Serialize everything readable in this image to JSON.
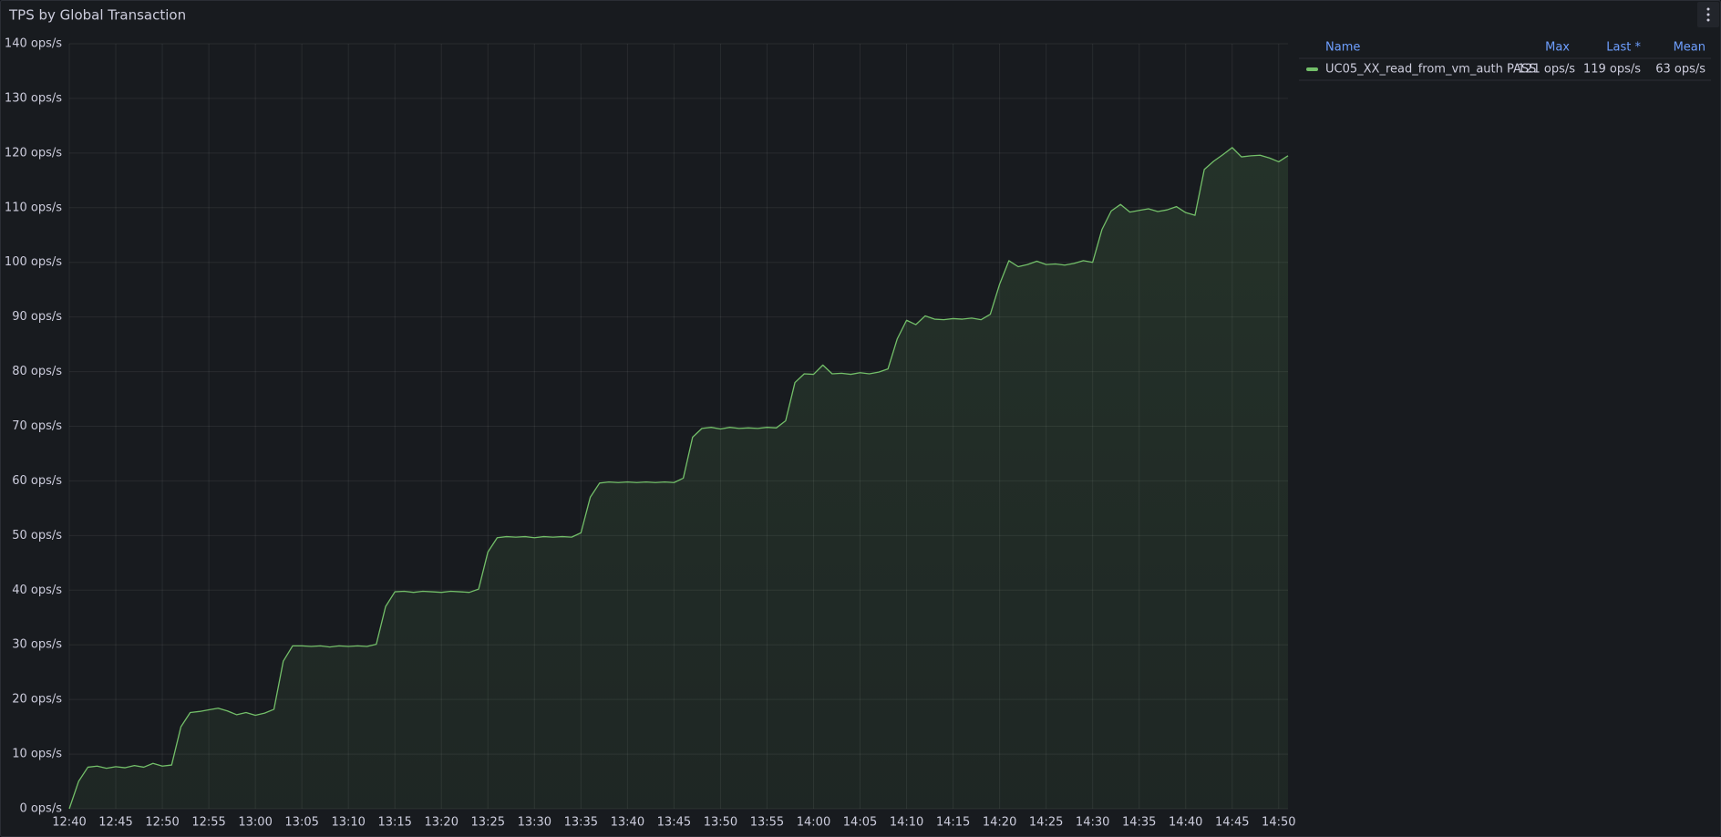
{
  "chart_data": {
    "type": "line",
    "title": "TPS by Global Transaction",
    "x": [
      "12:40",
      "12:41",
      "12:42",
      "12:43",
      "12:44",
      "12:45",
      "12:46",
      "12:47",
      "12:48",
      "12:49",
      "12:50",
      "12:51",
      "12:52",
      "12:53",
      "12:54",
      "12:55",
      "12:56",
      "12:57",
      "12:58",
      "12:59",
      "13:00",
      "13:01",
      "13:02",
      "13:03",
      "13:04",
      "13:05",
      "13:06",
      "13:07",
      "13:08",
      "13:09",
      "13:10",
      "13:11",
      "13:12",
      "13:13",
      "13:14",
      "13:15",
      "13:16",
      "13:17",
      "13:18",
      "13:19",
      "13:20",
      "13:21",
      "13:22",
      "13:23",
      "13:24",
      "13:25",
      "13:26",
      "13:27",
      "13:28",
      "13:29",
      "13:30",
      "13:31",
      "13:32",
      "13:33",
      "13:34",
      "13:35",
      "13:36",
      "13:37",
      "13:38",
      "13:39",
      "13:40",
      "13:41",
      "13:42",
      "13:43",
      "13:44",
      "13:45",
      "13:46",
      "13:47",
      "13:48",
      "13:49",
      "13:50",
      "13:51",
      "13:52",
      "13:53",
      "13:54",
      "13:55",
      "13:56",
      "13:57",
      "13:58",
      "13:59",
      "14:00",
      "14:01",
      "14:02",
      "14:03",
      "14:04",
      "14:05",
      "14:06",
      "14:07",
      "14:08",
      "14:09",
      "14:10",
      "14:11",
      "14:12",
      "14:13",
      "14:14",
      "14:15",
      "14:16",
      "14:17",
      "14:18",
      "14:19",
      "14:20",
      "14:21",
      "14:22",
      "14:23",
      "14:24",
      "14:25",
      "14:26",
      "14:27",
      "14:28",
      "14:29",
      "14:30",
      "14:31",
      "14:32",
      "14:33",
      "14:34",
      "14:35",
      "14:36",
      "14:37",
      "14:38",
      "14:39",
      "14:40",
      "14:41",
      "14:42",
      "14:43",
      "14:44",
      "14:45",
      "14:46",
      "14:47",
      "14:48",
      "14:49",
      "14:50",
      "14:51"
    ],
    "series": [
      {
        "name": "UC05_XX_read_from_vm_auth PASS",
        "color": "#73bf69",
        "stats": [
          "121 ops/s",
          "119 ops/s",
          "63 ops/s"
        ],
        "values": [
          0,
          5,
          7.6,
          7.8,
          7.4,
          7.7,
          7.5,
          7.9,
          7.6,
          8.3,
          7.8,
          8.0,
          15,
          17.6,
          17.8,
          18.1,
          18.4,
          17.9,
          17.2,
          17.6,
          17.1,
          17.5,
          18.2,
          27,
          29.8,
          29.8,
          29.7,
          29.8,
          29.6,
          29.8,
          29.7,
          29.8,
          29.7,
          30.1,
          37,
          39.7,
          39.8,
          39.6,
          39.8,
          39.7,
          39.6,
          39.8,
          39.7,
          39.6,
          40.2,
          47,
          49.6,
          49.8,
          49.7,
          49.8,
          49.6,
          49.8,
          49.7,
          49.8,
          49.7,
          50.5,
          57,
          59.6,
          59.8,
          59.7,
          59.8,
          59.7,
          59.8,
          59.7,
          59.8,
          59.7,
          60.5,
          68,
          69.6,
          69.8,
          69.5,
          69.8,
          69.6,
          69.7,
          69.6,
          69.8,
          69.7,
          71,
          78,
          79.6,
          79.5,
          81.2,
          79.6,
          79.7,
          79.5,
          79.8,
          79.6,
          79.9,
          80.5,
          86,
          89.4,
          88.6,
          90.2,
          89.6,
          89.5,
          89.7,
          89.6,
          89.8,
          89.5,
          90.5,
          96,
          100.3,
          99.2,
          99.6,
          100.2,
          99.6,
          99.7,
          99.5,
          99.8,
          100.3,
          100,
          106,
          109.4,
          110.6,
          109.2,
          109.5,
          109.8,
          109.3,
          109.6,
          110.2,
          109.1,
          108.6,
          117,
          118.5,
          119.7,
          121,
          119.3,
          119.5,
          119.6,
          119.1,
          118.4,
          119.5
        ]
      }
    ],
    "legend_columns": [
      "Name",
      "Max",
      "Last *",
      "Mean"
    ],
    "xlim": [
      "12:40",
      "14:51"
    ],
    "xticks": [
      "12:40",
      "12:45",
      "12:50",
      "12:55",
      "13:00",
      "13:05",
      "13:10",
      "13:15",
      "13:20",
      "13:25",
      "13:30",
      "13:35",
      "13:40",
      "13:45",
      "13:50",
      "13:55",
      "14:00",
      "14:05",
      "14:10",
      "14:15",
      "14:20",
      "14:25",
      "14:30",
      "14:35",
      "14:40",
      "14:45",
      "14:50"
    ],
    "ylim": [
      0,
      140
    ],
    "yticks": [
      {
        "value": 0,
        "label": "0 ops/s"
      },
      {
        "value": 10,
        "label": "10 ops/s"
      },
      {
        "value": 20,
        "label": "20 ops/s"
      },
      {
        "value": 30,
        "label": "30 ops/s"
      },
      {
        "value": 40,
        "label": "40 ops/s"
      },
      {
        "value": 50,
        "label": "50 ops/s"
      },
      {
        "value": 60,
        "label": "60 ops/s"
      },
      {
        "value": 70,
        "label": "70 ops/s"
      },
      {
        "value": 80,
        "label": "80 ops/s"
      },
      {
        "value": 90,
        "label": "90 ops/s"
      },
      {
        "value": 100,
        "label": "100 ops/s"
      },
      {
        "value": 110,
        "label": "110 ops/s"
      },
      {
        "value": 120,
        "label": "120 ops/s"
      },
      {
        "value": 130,
        "label": "130 ops/s"
      },
      {
        "value": 140,
        "label": "140 ops/s"
      }
    ],
    "grid": true
  }
}
